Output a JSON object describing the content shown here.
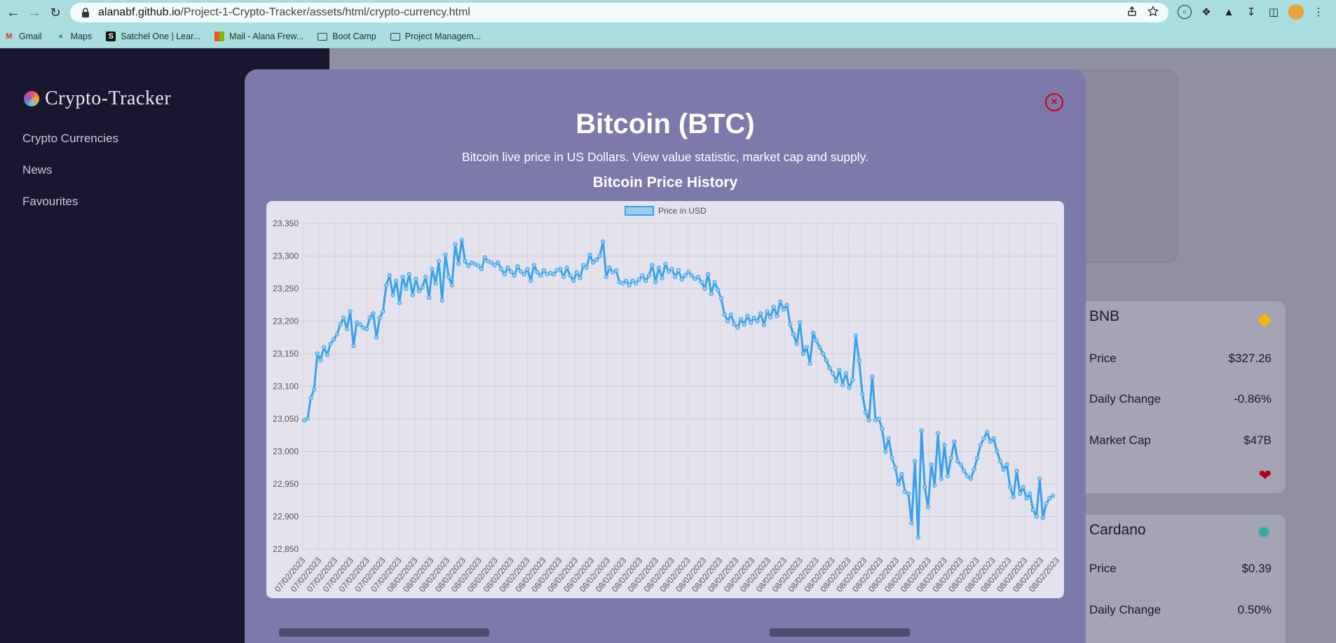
{
  "browser": {
    "url_host": "alanabf.github.io",
    "url_path": "/Project-1-Crypto-Tracker/assets/html/crypto-currency.html",
    "bookmarks": [
      {
        "label": "Gmail",
        "icon": "gmail-icon",
        "color": "#d93025"
      },
      {
        "label": "Maps",
        "icon": "maps-icon",
        "color": "#34a853"
      },
      {
        "label": "Satchel One | Lear...",
        "icon": "satchel-icon",
        "color": "#111111"
      },
      {
        "label": "Mail - Alana Frew...",
        "icon": "outlook-icon",
        "color": "#f25022"
      },
      {
        "label": "Boot Camp",
        "icon": "folder-icon",
        "color": "#3c4043"
      },
      {
        "label": "Project Managem...",
        "icon": "folder-icon",
        "color": "#3c4043"
      }
    ]
  },
  "sidebar": {
    "logo_text": "Crypto-Tracker",
    "items": [
      {
        "label": "Crypto Currencies"
      },
      {
        "label": "News"
      },
      {
        "label": "Favourites"
      }
    ]
  },
  "background_cards": [
    {
      "name": "BNB",
      "icon": "bnb-icon",
      "color": "#f0b90b",
      "rows": [
        {
          "label": "Price",
          "value": "$327.26"
        },
        {
          "label": "Daily Change",
          "value": "-0.86%"
        },
        {
          "label": "Market Cap",
          "value": "$47B"
        }
      ],
      "favourite": true
    },
    {
      "name": "Cardano",
      "icon": "cardano-icon",
      "color": "#3aa7a7",
      "rows": [
        {
          "label": "Price",
          "value": "$0.39"
        },
        {
          "label": "Daily Change",
          "value": "0.50%"
        }
      ],
      "favourite": false
    }
  ],
  "modal": {
    "title": "Bitcoin (BTC)",
    "subtitle": "Bitcoin live price in US Dollars. View value statistic, market cap and supply.",
    "chart_heading": "Bitcoin Price History",
    "close_label": "×"
  },
  "chart_data": {
    "type": "line",
    "title": "Bitcoin Price History",
    "legend": [
      "Price in USD"
    ],
    "legend_position": "top",
    "line_color": "#36a2eb",
    "xlabel": "",
    "ylabel": "",
    "ylim": [
      22850,
      23350
    ],
    "y_ticks": [
      22850,
      22900,
      22950,
      23000,
      23050,
      23100,
      23150,
      23200,
      23250,
      23300,
      23350
    ],
    "x_tick_labels": [
      "07/02/2023",
      "07/02/2023",
      "07/02/2023",
      "07/02/2023",
      "07/02/2023",
      "07/02/2023",
      "07/02/2023",
      "08/02/2023",
      "08/02/2023",
      "08/02/2023",
      "08/02/2023",
      "08/02/2023",
      "08/02/2023",
      "08/02/2023",
      "08/02/2023",
      "08/02/2023",
      "08/02/2023",
      "08/02/2023",
      "08/02/2023",
      "08/02/2023",
      "08/02/2023",
      "08/02/2023",
      "08/02/2023",
      "08/02/2023",
      "08/02/2023",
      "08/02/2023",
      "08/02/2023",
      "08/02/2023",
      "08/02/2023",
      "08/02/2023",
      "08/02/2023",
      "08/02/2023",
      "08/02/2023",
      "08/02/2023",
      "08/02/2023",
      "08/02/2023",
      "08/02/2023",
      "08/02/2023",
      "08/02/2023",
      "08/02/2023",
      "08/02/2023",
      "08/02/2023",
      "08/02/2023",
      "08/02/2023",
      "08/02/2023",
      "08/02/2023",
      "08/02/2023",
      "08/02/2023"
    ],
    "grid": true,
    "series": [
      {
        "name": "Price in USD",
        "values": [
          23048,
          23050,
          23082,
          23095,
          23150,
          23140,
          23160,
          23148,
          23165,
          23172,
          23180,
          23195,
          23205,
          23188,
          23215,
          23162,
          23198,
          23195,
          23190,
          23188,
          23205,
          23212,
          23175,
          23205,
          23215,
          23255,
          23270,
          23240,
          23262,
          23228,
          23268,
          23250,
          23272,
          23240,
          23265,
          23246,
          23252,
          23268,
          23236,
          23280,
          23258,
          23292,
          23232,
          23302,
          23268,
          23255,
          23318,
          23288,
          23325,
          23292,
          23285,
          23290,
          23288,
          23285,
          23280,
          23298,
          23292,
          23290,
          23286,
          23290,
          23280,
          23272,
          23282,
          23276,
          23270,
          23284,
          23276,
          23272,
          23280,
          23262,
          23286,
          23275,
          23270,
          23278,
          23272,
          23274,
          23272,
          23278,
          23280,
          23268,
          23282,
          23270,
          23262,
          23275,
          23266,
          23286,
          23282,
          23302,
          23290,
          23294,
          23300,
          23322,
          23268,
          23282,
          23275,
          23278,
          23260,
          23258,
          23262,
          23255,
          23262,
          23258,
          23264,
          23270,
          23262,
          23270,
          23286,
          23260,
          23282,
          23266,
          23288,
          23276,
          23280,
          23268,
          23278,
          23264,
          23270,
          23276,
          23270,
          23265,
          23268,
          23260,
          23250,
          23272,
          23242,
          23260,
          23248,
          23235,
          23210,
          23200,
          23210,
          23195,
          23190,
          23203,
          23195,
          23208,
          23198,
          23205,
          23200,
          23212,
          23194,
          23215,
          23206,
          23222,
          23208,
          23230,
          23218,
          23225,
          23195,
          23180,
          23165,
          23198,
          23150,
          23160,
          23135,
          23182,
          23170,
          23160,
          23150,
          23140,
          23128,
          23120,
          23108,
          23125,
          23102,
          23120,
          23098,
          23110,
          23178,
          23140,
          23088,
          23060,
          23048,
          23115,
          23048,
          23050,
          23035,
          23000,
          23020,
          22990,
          22975,
          22950,
          22965,
          22938,
          22935,
          22890,
          22985,
          22868,
          23032,
          22945,
          22915,
          22980,
          22948,
          23028,
          22958,
          23010,
          22962,
          22990,
          23015,
          22985,
          22980,
          22970,
          22962,
          22958,
          22972,
          22990,
          23010,
          23020,
          23030,
          23015,
          23020,
          23000,
          22985,
          22972,
          22980,
          22945,
          22930,
          22970,
          22935,
          22945,
          22928,
          22935,
          22910,
          22900,
          22958,
          22898,
          22920,
          22928,
          22932
        ]
      }
    ]
  }
}
